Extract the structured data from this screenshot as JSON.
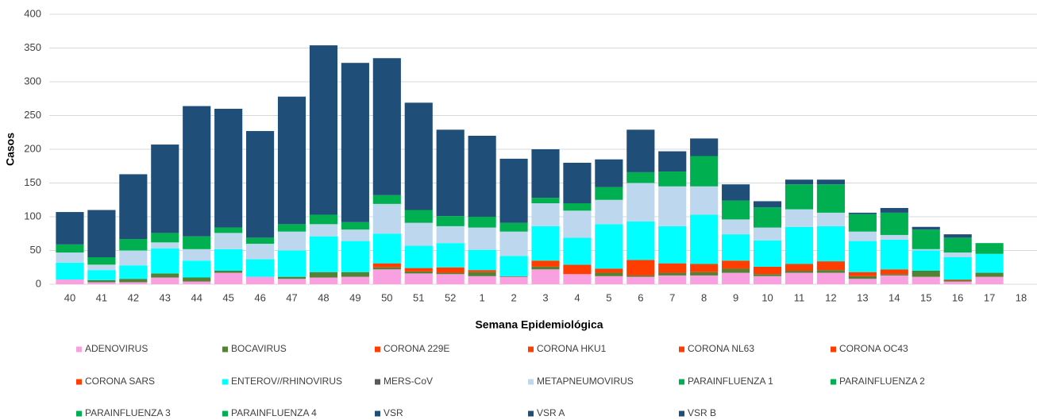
{
  "chart_data": {
    "type": "stacked_bar",
    "x_label": "Semana Epidemiológica",
    "y_label": "Casos",
    "categories": [
      "40",
      "41",
      "42",
      "43",
      "44",
      "45",
      "46",
      "47",
      "48",
      "49",
      "50",
      "51",
      "52",
      "1",
      "2",
      "3",
      "4",
      "5",
      "6",
      "7",
      "8",
      "9",
      "10",
      "11",
      "12",
      "13",
      "14",
      "15",
      "16",
      "17",
      "18"
    ],
    "ylim": [
      0,
      400
    ],
    "yticks": [
      0,
      50,
      100,
      150,
      200,
      250,
      300,
      350,
      400
    ],
    "grid": true,
    "series": [
      {
        "name": "ADENOVIRUS",
        "color": "#f8a0e0",
        "values": [
          7,
          3,
          3,
          10,
          4,
          17,
          11,
          8,
          10,
          11,
          22,
          16,
          15,
          12,
          11,
          22,
          15,
          12,
          11,
          13,
          13,
          17,
          12,
          17,
          17,
          8,
          13,
          11,
          4,
          11,
          0
        ]
      },
      {
        "name": "BOCAVIRUS",
        "color": "#548235",
        "values": [
          0,
          3,
          5,
          6,
          6,
          3,
          0,
          3,
          8,
          7,
          3,
          3,
          2,
          6,
          1,
          4,
          0,
          5,
          2,
          4,
          5,
          6,
          3,
          3,
          4,
          4,
          2,
          9,
          2,
          6,
          0
        ]
      },
      {
        "name": "CORONA 229E",
        "color": "#ff3d00",
        "values": [
          0,
          0,
          0,
          0,
          0,
          0,
          0,
          0,
          0,
          0,
          0,
          0,
          0,
          0,
          0,
          0,
          0,
          0,
          0,
          0,
          0,
          0,
          0,
          0,
          0,
          0,
          0,
          0,
          0,
          0,
          0
        ]
      },
      {
        "name": "CORONA HKU1",
        "color": "#ff3d00",
        "values": [
          0,
          0,
          0,
          0,
          0,
          0,
          0,
          0,
          0,
          0,
          0,
          0,
          0,
          0,
          0,
          0,
          0,
          0,
          0,
          0,
          0,
          0,
          0,
          0,
          0,
          0,
          0,
          0,
          0,
          0,
          0
        ]
      },
      {
        "name": "CORONA NL63",
        "color": "#ff3d00",
        "values": [
          0,
          0,
          0,
          0,
          0,
          0,
          0,
          0,
          0,
          0,
          6,
          5,
          8,
          3,
          0,
          9,
          14,
          6,
          23,
          14,
          12,
          12,
          11,
          10,
          13,
          6,
          7,
          0,
          1,
          0,
          0
        ]
      },
      {
        "name": "CORONA OC43",
        "color": "#ff3d00",
        "values": [
          0,
          0,
          0,
          0,
          0,
          0,
          0,
          0,
          0,
          0,
          0,
          0,
          0,
          0,
          0,
          0,
          0,
          0,
          0,
          0,
          0,
          0,
          0,
          0,
          0,
          0,
          0,
          0,
          0,
          0,
          0
        ]
      },
      {
        "name": "CORONA SARS",
        "color": "#ff3d00",
        "values": [
          0,
          0,
          0,
          0,
          0,
          0,
          0,
          0,
          0,
          0,
          0,
          0,
          0,
          0,
          0,
          0,
          0,
          0,
          0,
          0,
          0,
          0,
          0,
          0,
          0,
          0,
          0,
          0,
          0,
          0,
          0
        ]
      },
      {
        "name": "ENTEROV//RHINOVIRUS",
        "color": "#00ffff",
        "values": [
          25,
          15,
          20,
          37,
          25,
          32,
          26,
          39,
          53,
          46,
          44,
          33,
          36,
          30,
          30,
          51,
          40,
          66,
          57,
          55,
          73,
          39,
          39,
          55,
          52,
          46,
          44,
          30,
          33,
          28,
          0
        ]
      },
      {
        "name": "MERS-CoV",
        "color": "#595959",
        "values": [
          0,
          0,
          0,
          0,
          0,
          0,
          0,
          0,
          0,
          0,
          0,
          0,
          0,
          0,
          0,
          0,
          0,
          0,
          0,
          0,
          0,
          0,
          0,
          0,
          0,
          0,
          0,
          0,
          0,
          0,
          0
        ]
      },
      {
        "name": "METAPNEUMOVIRUS",
        "color": "#bdd7ee",
        "values": [
          15,
          8,
          22,
          9,
          17,
          24,
          23,
          28,
          18,
          17,
          44,
          34,
          25,
          33,
          36,
          34,
          40,
          36,
          57,
          59,
          42,
          22,
          19,
          26,
          20,
          14,
          7,
          2,
          7,
          0,
          0
        ]
      },
      {
        "name": "PARAINFLUENZA 1",
        "color": "#00b050",
        "values": [
          12,
          11,
          17,
          14,
          19,
          8,
          9,
          11,
          14,
          11,
          13,
          19,
          15,
          16,
          13,
          8,
          11,
          19,
          16,
          22,
          45,
          28,
          30,
          37,
          42,
          26,
          33,
          29,
          22,
          16,
          0
        ]
      },
      {
        "name": "PARAINFLUENZA 2",
        "color": "#00b050",
        "values": [
          0,
          0,
          0,
          0,
          0,
          0,
          0,
          0,
          0,
          0,
          0,
          0,
          0,
          0,
          0,
          0,
          0,
          0,
          0,
          0,
          0,
          0,
          0,
          0,
          0,
          0,
          0,
          0,
          0,
          0,
          0
        ]
      },
      {
        "name": "PARAINFLUENZA 3",
        "color": "#00b050",
        "values": [
          0,
          0,
          0,
          0,
          0,
          0,
          0,
          0,
          0,
          0,
          0,
          0,
          0,
          0,
          0,
          0,
          0,
          0,
          0,
          0,
          0,
          0,
          0,
          0,
          0,
          0,
          0,
          0,
          0,
          0,
          0
        ]
      },
      {
        "name": "PARAINFLUENZA 4",
        "color": "#00b050",
        "values": [
          0,
          0,
          0,
          0,
          0,
          0,
          0,
          0,
          0,
          0,
          0,
          0,
          0,
          0,
          0,
          0,
          0,
          0,
          0,
          0,
          0,
          0,
          0,
          0,
          0,
          0,
          0,
          0,
          0,
          0,
          0
        ]
      },
      {
        "name": "VSR",
        "color": "#1f4e79",
        "values": [
          48,
          70,
          96,
          131,
          193,
          176,
          158,
          189,
          251,
          236,
          203,
          159,
          128,
          120,
          95,
          72,
          60,
          41,
          63,
          30,
          26,
          24,
          9,
          7,
          7,
          2,
          7,
          4,
          5,
          0,
          0
        ]
      },
      {
        "name": "VSR A",
        "color": "#1f4e79",
        "values": [
          0,
          0,
          0,
          0,
          0,
          0,
          0,
          0,
          0,
          0,
          0,
          0,
          0,
          0,
          0,
          0,
          0,
          0,
          0,
          0,
          0,
          0,
          0,
          0,
          0,
          0,
          0,
          0,
          0,
          0,
          0
        ]
      },
      {
        "name": "VSR B",
        "color": "#1f4e79",
        "values": [
          0,
          0,
          0,
          0,
          0,
          0,
          0,
          0,
          0,
          0,
          0,
          0,
          0,
          0,
          0,
          0,
          0,
          0,
          0,
          0,
          0,
          0,
          0,
          0,
          0,
          0,
          0,
          0,
          0,
          0,
          0
        ]
      }
    ]
  }
}
